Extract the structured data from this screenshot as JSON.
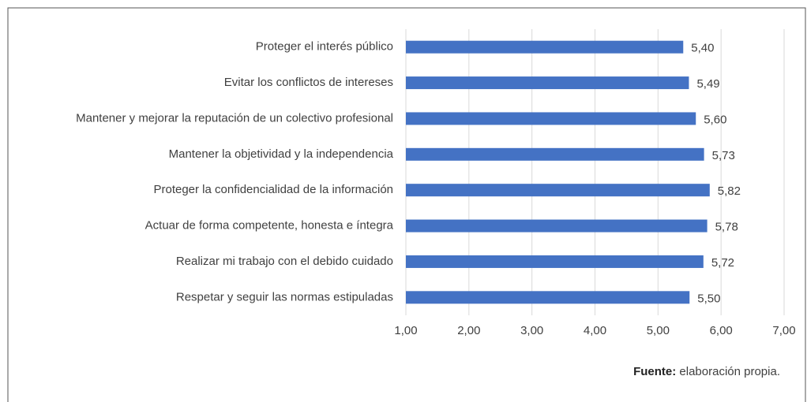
{
  "chart_data": {
    "type": "bar",
    "orientation": "horizontal",
    "categories": [
      "Proteger el interés público",
      "Evitar los conflictos de intereses",
      "Mantener y mejorar la reputación de un colectivo profesional",
      "Mantener la objetividad y la independencia",
      "Proteger la confidencialidad de la información",
      "Actuar de forma competente, honesta e íntegra",
      "Realizar mi trabajo con el debido cuidado",
      "Respetar y seguir las normas estipuladas"
    ],
    "values": [
      5.4,
      5.49,
      5.6,
      5.73,
      5.82,
      5.78,
      5.72,
      5.5
    ],
    "value_labels": [
      "5,40",
      "5,49",
      "5,60",
      "5,73",
      "5,82",
      "5,78",
      "5,72",
      "5,50"
    ],
    "color": "#4472c4",
    "xlim": [
      1,
      7
    ],
    "xticks": [
      {
        "value": 1,
        "label": "1,00"
      },
      {
        "value": 2,
        "label": "2,00"
      },
      {
        "value": 3,
        "label": "3,00"
      },
      {
        "value": 4,
        "label": "4,00"
      },
      {
        "value": 5,
        "label": "5,00"
      },
      {
        "value": 6,
        "label": "6,00"
      },
      {
        "value": 7,
        "label": "7,00"
      }
    ],
    "grid": true,
    "source_label": "Fuente:",
    "source_text": " elaboración propia."
  }
}
